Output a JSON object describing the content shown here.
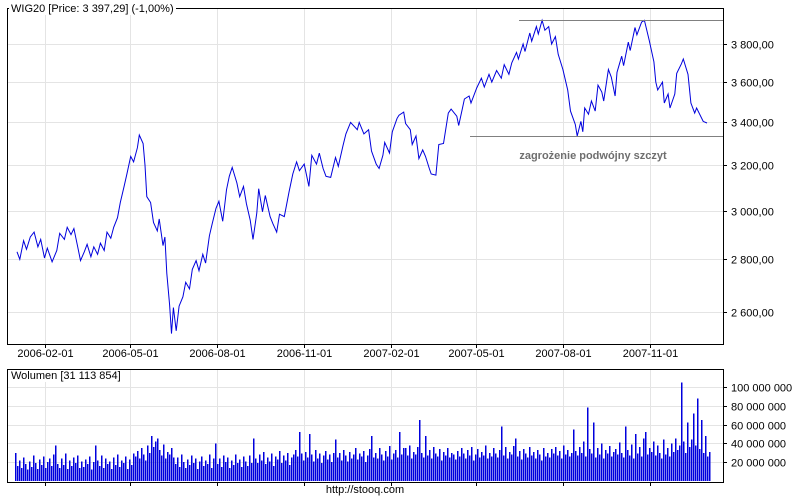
{
  "footer": {
    "url": "http://stooq.com"
  },
  "colors": {
    "price_line": "#0000dd",
    "volume_bar": "#0000dd",
    "grid": "#e4e4e4",
    "frame": "#000000",
    "trendline": "#808080",
    "annotation_text": "#6e6e6e",
    "background": "#ffffff"
  },
  "chart_data": [
    {
      "type": "line",
      "title": "WIG20 [Price: 3 397,29] (-1,00%)",
      "series_name": "WIG20",
      "y_scale": "log",
      "ylim": [
        2530,
        4000
      ],
      "axis_side": "right",
      "grid": true,
      "y_ticks": [
        {
          "v": 3800,
          "label": "3 800,00"
        },
        {
          "v": 3600,
          "label": "3 600,00"
        },
        {
          "v": 3400,
          "label": "3 400,00"
        },
        {
          "v": 3200,
          "label": "3 200,00"
        },
        {
          "v": 3000,
          "label": "3 000,00"
        },
        {
          "v": 2800,
          "label": "2 800,00"
        },
        {
          "v": 2600,
          "label": "2 600,00"
        }
      ],
      "x_domain": [
        "2006-01-02",
        "2007-12-31"
      ],
      "x_ticks": [
        {
          "d": "2006-02-01",
          "label": "2006-02-01"
        },
        {
          "d": "2006-05-01",
          "label": "2006-05-01"
        },
        {
          "d": "2006-08-01",
          "label": "2006-08-01"
        },
        {
          "d": "2006-11-01",
          "label": "2006-11-01"
        },
        {
          "d": "2007-02-01",
          "label": "2007-02-01"
        },
        {
          "d": "2007-05-01",
          "label": "2007-05-01"
        },
        {
          "d": "2007-08-01",
          "label": "2007-08-01"
        },
        {
          "d": "2007-11-01",
          "label": "2007-11-01"
        }
      ],
      "trendlines": [
        {
          "price": 3930,
          "from": "2007-06-16",
          "to_right_edge": true
        },
        {
          "price": 3335,
          "from": "2007-04-25",
          "to_right_edge": true
        }
      ],
      "annotation": "zagrożenie podwójny szczyt",
      "points": [
        [
          "2006-01-02",
          2830
        ],
        [
          "2006-01-05",
          2800
        ],
        [
          "2006-01-09",
          2875
        ],
        [
          "2006-01-12",
          2840
        ],
        [
          "2006-01-16",
          2890
        ],
        [
          "2006-01-20",
          2910
        ],
        [
          "2006-01-24",
          2850
        ],
        [
          "2006-01-27",
          2880
        ],
        [
          "2006-01-31",
          2805
        ],
        [
          "2006-02-03",
          2845
        ],
        [
          "2006-02-08",
          2790
        ],
        [
          "2006-02-13",
          2835
        ],
        [
          "2006-02-16",
          2905
        ],
        [
          "2006-02-21",
          2880
        ],
        [
          "2006-02-24",
          2930
        ],
        [
          "2006-02-28",
          2900
        ],
        [
          "2006-03-03",
          2925
        ],
        [
          "2006-03-07",
          2850
        ],
        [
          "2006-03-10",
          2795
        ],
        [
          "2006-03-14",
          2830
        ],
        [
          "2006-03-17",
          2860
        ],
        [
          "2006-03-21",
          2810
        ],
        [
          "2006-03-24",
          2850
        ],
        [
          "2006-03-28",
          2820
        ],
        [
          "2006-03-31",
          2865
        ],
        [
          "2006-04-04",
          2835
        ],
        [
          "2006-04-07",
          2910
        ],
        [
          "2006-04-11",
          2885
        ],
        [
          "2006-04-14",
          2930
        ],
        [
          "2006-04-18",
          2970
        ],
        [
          "2006-04-21",
          3035
        ],
        [
          "2006-04-25",
          3105
        ],
        [
          "2006-04-28",
          3160
        ],
        [
          "2006-05-02",
          3240
        ],
        [
          "2006-05-05",
          3215
        ],
        [
          "2006-05-09",
          3280
        ],
        [
          "2006-05-11",
          3340
        ],
        [
          "2006-05-15",
          3300
        ],
        [
          "2006-05-17",
          3200
        ],
        [
          "2006-05-19",
          3060
        ],
        [
          "2006-05-23",
          3035
        ],
        [
          "2006-05-26",
          2950
        ],
        [
          "2006-05-30",
          2915
        ],
        [
          "2006-06-01",
          2965
        ],
        [
          "2006-06-05",
          2855
        ],
        [
          "2006-06-07",
          2890
        ],
        [
          "2006-06-09",
          2745
        ],
        [
          "2006-06-12",
          2625
        ],
        [
          "2006-06-14",
          2520
        ],
        [
          "2006-06-16",
          2615
        ],
        [
          "2006-06-19",
          2530
        ],
        [
          "2006-06-22",
          2620
        ],
        [
          "2006-06-26",
          2655
        ],
        [
          "2006-06-29",
          2710
        ],
        [
          "2006-07-03",
          2685
        ],
        [
          "2006-07-06",
          2760
        ],
        [
          "2006-07-10",
          2795
        ],
        [
          "2006-07-13",
          2755
        ],
        [
          "2006-07-17",
          2820
        ],
        [
          "2006-07-20",
          2785
        ],
        [
          "2006-07-24",
          2895
        ],
        [
          "2006-07-27",
          2945
        ],
        [
          "2006-07-31",
          3010
        ],
        [
          "2006-08-03",
          3040
        ],
        [
          "2006-08-07",
          2955
        ],
        [
          "2006-08-09",
          3020
        ],
        [
          "2006-08-11",
          3090
        ],
        [
          "2006-08-14",
          3150
        ],
        [
          "2006-08-17",
          3190
        ],
        [
          "2006-08-22",
          3120
        ],
        [
          "2006-08-25",
          3060
        ],
        [
          "2006-08-29",
          3105
        ],
        [
          "2006-09-01",
          3030
        ],
        [
          "2006-09-05",
          2960
        ],
        [
          "2006-09-08",
          2880
        ],
        [
          "2006-09-12",
          2990
        ],
        [
          "2006-09-14",
          3095
        ],
        [
          "2006-09-18",
          2995
        ],
        [
          "2006-09-21",
          3065
        ],
        [
          "2006-09-26",
          2975
        ],
        [
          "2006-09-29",
          2945
        ],
        [
          "2006-10-03",
          2910
        ],
        [
          "2006-10-06",
          2985
        ],
        [
          "2006-10-11",
          2975
        ],
        [
          "2006-10-16",
          3080
        ],
        [
          "2006-10-20",
          3160
        ],
        [
          "2006-10-24",
          3215
        ],
        [
          "2006-10-27",
          3175
        ],
        [
          "2006-11-01",
          3205
        ],
        [
          "2006-11-06",
          3105
        ],
        [
          "2006-11-09",
          3245
        ],
        [
          "2006-11-14",
          3205
        ],
        [
          "2006-11-17",
          3255
        ],
        [
          "2006-11-21",
          3185
        ],
        [
          "2006-11-24",
          3150
        ],
        [
          "2006-11-29",
          3145
        ],
        [
          "2006-12-04",
          3235
        ],
        [
          "2006-12-07",
          3195
        ],
        [
          "2006-12-12",
          3290
        ],
        [
          "2006-12-15",
          3345
        ],
        [
          "2006-12-20",
          3400
        ],
        [
          "2006-12-27",
          3365
        ],
        [
          "2006-12-29",
          3400
        ],
        [
          "2007-01-03",
          3345
        ],
        [
          "2007-01-08",
          3365
        ],
        [
          "2007-01-11",
          3265
        ],
        [
          "2007-01-16",
          3205
        ],
        [
          "2007-01-19",
          3185
        ],
        [
          "2007-01-23",
          3245
        ],
        [
          "2007-01-25",
          3305
        ],
        [
          "2007-01-30",
          3255
        ],
        [
          "2007-02-02",
          3355
        ],
        [
          "2007-02-07",
          3420
        ],
        [
          "2007-02-09",
          3435
        ],
        [
          "2007-02-14",
          3450
        ],
        [
          "2007-02-16",
          3395
        ],
        [
          "2007-02-21",
          3365
        ],
        [
          "2007-02-23",
          3295
        ],
        [
          "2007-02-27",
          3335
        ],
        [
          "2007-03-02",
          3230
        ],
        [
          "2007-03-06",
          3270
        ],
        [
          "2007-03-09",
          3240
        ],
        [
          "2007-03-13",
          3185
        ],
        [
          "2007-03-15",
          3160
        ],
        [
          "2007-03-20",
          3155
        ],
        [
          "2007-03-23",
          3295
        ],
        [
          "2007-03-28",
          3300
        ],
        [
          "2007-04-02",
          3445
        ],
        [
          "2007-04-05",
          3465
        ],
        [
          "2007-04-11",
          3430
        ],
        [
          "2007-04-13",
          3385
        ],
        [
          "2007-04-17",
          3470
        ],
        [
          "2007-04-19",
          3515
        ],
        [
          "2007-04-24",
          3530
        ],
        [
          "2007-04-26",
          3495
        ],
        [
          "2007-05-02",
          3570
        ],
        [
          "2007-05-07",
          3620
        ],
        [
          "2007-05-10",
          3575
        ],
        [
          "2007-05-15",
          3640
        ],
        [
          "2007-05-18",
          3600
        ],
        [
          "2007-05-23",
          3660
        ],
        [
          "2007-05-28",
          3620
        ],
        [
          "2007-05-31",
          3690
        ],
        [
          "2007-06-05",
          3640
        ],
        [
          "2007-06-08",
          3700
        ],
        [
          "2007-06-13",
          3755
        ],
        [
          "2007-06-15",
          3720
        ],
        [
          "2007-06-20",
          3800
        ],
        [
          "2007-06-22",
          3760
        ],
        [
          "2007-06-27",
          3860
        ],
        [
          "2007-06-29",
          3815
        ],
        [
          "2007-07-04",
          3895
        ],
        [
          "2007-07-06",
          3855
        ],
        [
          "2007-07-10",
          3930
        ],
        [
          "2007-07-13",
          3875
        ],
        [
          "2007-07-17",
          3895
        ],
        [
          "2007-07-20",
          3800
        ],
        [
          "2007-07-24",
          3840
        ],
        [
          "2007-07-27",
          3745
        ],
        [
          "2007-08-01",
          3665
        ],
        [
          "2007-08-06",
          3560
        ],
        [
          "2007-08-09",
          3455
        ],
        [
          "2007-08-14",
          3390
        ],
        [
          "2007-08-16",
          3335
        ],
        [
          "2007-08-20",
          3405
        ],
        [
          "2007-08-22",
          3355
        ],
        [
          "2007-08-24",
          3470
        ],
        [
          "2007-08-28",
          3440
        ],
        [
          "2007-08-31",
          3505
        ],
        [
          "2007-09-04",
          3455
        ],
        [
          "2007-09-07",
          3585
        ],
        [
          "2007-09-11",
          3550
        ],
        [
          "2007-09-13",
          3505
        ],
        [
          "2007-09-18",
          3665
        ],
        [
          "2007-09-21",
          3625
        ],
        [
          "2007-09-25",
          3530
        ],
        [
          "2007-09-27",
          3650
        ],
        [
          "2007-10-02",
          3735
        ],
        [
          "2007-10-04",
          3685
        ],
        [
          "2007-10-09",
          3810
        ],
        [
          "2007-10-11",
          3765
        ],
        [
          "2007-10-16",
          3890
        ],
        [
          "2007-10-18",
          3850
        ],
        [
          "2007-10-23",
          3920
        ],
        [
          "2007-10-26",
          3930
        ],
        [
          "2007-10-31",
          3820
        ],
        [
          "2007-11-05",
          3705
        ],
        [
          "2007-11-07",
          3600
        ],
        [
          "2007-11-09",
          3560
        ],
        [
          "2007-11-14",
          3600
        ],
        [
          "2007-11-16",
          3495
        ],
        [
          "2007-11-20",
          3540
        ],
        [
          "2007-11-22",
          3470
        ],
        [
          "2007-11-27",
          3540
        ],
        [
          "2007-11-29",
          3645
        ],
        [
          "2007-12-04",
          3695
        ],
        [
          "2007-12-06",
          3720
        ],
        [
          "2007-12-11",
          3640
        ],
        [
          "2007-12-14",
          3495
        ],
        [
          "2007-12-18",
          3445
        ],
        [
          "2007-12-20",
          3470
        ],
        [
          "2007-12-27",
          3405
        ],
        [
          "2007-12-31",
          3397
        ]
      ]
    },
    {
      "type": "bar",
      "title": "Wolumen [31 113 854]",
      "current_value": "31 113 854",
      "unit": "shares (values in millions)",
      "ylim": [
        0,
        108
      ],
      "y_ticks": [
        {
          "v": 100,
          "label": "100 000 000"
        },
        {
          "v": 80,
          "label": "80 000 000"
        },
        {
          "v": 60,
          "label": "60 000 000"
        },
        {
          "v": 40,
          "label": "40 000 000"
        },
        {
          "v": 20,
          "label": "20 000 000"
        }
      ],
      "values": [
        30,
        16,
        22,
        14,
        25,
        18,
        12,
        21,
        15,
        27,
        19,
        13,
        23,
        17,
        26,
        14,
        20,
        24,
        16,
        28,
        38,
        18,
        14,
        24,
        17,
        29,
        13,
        22,
        16,
        25,
        19,
        27,
        14,
        21,
        15,
        23,
        18,
        26,
        12,
        20,
        38,
        22,
        16,
        27,
        14,
        24,
        18,
        21,
        13,
        25,
        17,
        28,
        15,
        22,
        19,
        26,
        13,
        23,
        17,
        29,
        26,
        32,
        24,
        35,
        28,
        22,
        38,
        30,
        48,
        36,
        42,
        45,
        33,
        27,
        39,
        24,
        31,
        28,
        35,
        25,
        18,
        25,
        15,
        28,
        20,
        14,
        23,
        17,
        27,
        19,
        24,
        13,
        21,
        26,
        16,
        22,
        18,
        28,
        14,
        24,
        40,
        18,
        24,
        15,
        27,
        20,
        25,
        14,
        22,
        17,
        28,
        19,
        23,
        15,
        26,
        21,
        16,
        27,
        19,
        45,
        24,
        19,
        28,
        22,
        31,
        18,
        25,
        21,
        29,
        16,
        26,
        23,
        32,
        19,
        27,
        22,
        30,
        17,
        25,
        28,
        33,
        26,
        52,
        29,
        22,
        31,
        25,
        50,
        28,
        21,
        33,
        24,
        29,
        19,
        27,
        32,
        23,
        28,
        20,
        30,
        44,
        25,
        30,
        22,
        33,
        27,
        21,
        31,
        24,
        28,
        35,
        23,
        29,
        26,
        32,
        20,
        27,
        34,
        48,
        25,
        30,
        24,
        35,
        28,
        22,
        32,
        26,
        37,
        23,
        29,
        33,
        25,
        52,
        28,
        35,
        35,
        27,
        38,
        24,
        31,
        28,
        36,
        65,
        30,
        25,
        48,
        27,
        33,
        24,
        36,
        29,
        26,
        34,
        22,
        31,
        27,
        35,
        25,
        30,
        28,
        23,
        32,
        26,
        35,
        29,
        24,
        33,
        27,
        36,
        22,
        28,
        34,
        25,
        31,
        27,
        38,
        24,
        30,
        26,
        35,
        29,
        25,
        33,
        58,
        27,
        36,
        24,
        31,
        28,
        37,
        45,
        26,
        32,
        23,
        34,
        29,
        25,
        36,
        27,
        31,
        24,
        33,
        28,
        22,
        35,
        26,
        30,
        25,
        34,
        29,
        36,
        27,
        32,
        24,
        38,
        28,
        33,
        26,
        30,
        55,
        32,
        27,
        36,
        30,
        42,
        26,
        78,
        34,
        29,
        62,
        25,
        35,
        28,
        40,
        24,
        33,
        29,
        37,
        26,
        31,
        34,
        28,
        41,
        30,
        25,
        58,
        33,
        27,
        39,
        24,
        50,
        29,
        36,
        26,
        45,
        52,
        28,
        35,
        31,
        42,
        27,
        38,
        30,
        24,
        44,
        28,
        35,
        26,
        40,
        31,
        45,
        33,
        38,
        105,
        42,
        30,
        62,
        36,
        44,
        72,
        38,
        88,
        34,
        65,
        30,
        48,
        26,
        31
      ]
    }
  ]
}
